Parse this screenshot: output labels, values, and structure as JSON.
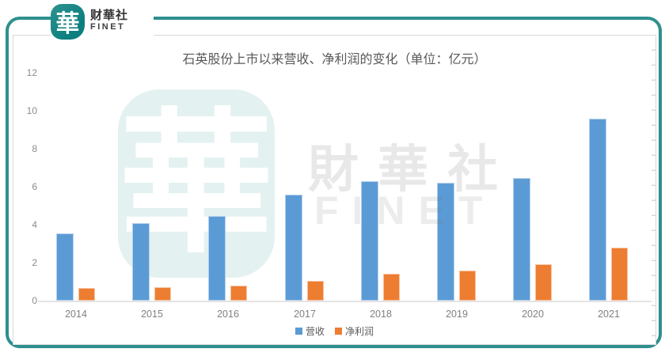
{
  "header": {
    "logo_glyph": "華",
    "brand_cn": "财華社",
    "brand_en": "FINET"
  },
  "watermark": {
    "logo_glyph": "華",
    "text_cn": "財華社",
    "text_en": "FINET"
  },
  "chart_data": {
    "type": "bar",
    "title": "石英股份上市以来营收、净利润的变化（单位：亿元）",
    "categories": [
      "2014",
      "2015",
      "2016",
      "2017",
      "2018",
      "2019",
      "2020",
      "2021"
    ],
    "series": [
      {
        "name": "营收",
        "color": "#5B9BD5",
        "values": [
          3.55,
          4.1,
          4.45,
          5.6,
          6.3,
          6.2,
          6.45,
          9.6
        ]
      },
      {
        "name": "净利润",
        "color": "#ED7D31",
        "values": [
          0.65,
          0.7,
          0.8,
          1.05,
          1.4,
          1.6,
          1.9,
          2.8
        ]
      }
    ],
    "y_ticks": [
      0,
      2,
      4,
      6,
      8,
      10,
      12
    ],
    "ylim": [
      0,
      12
    ],
    "xlabel": "",
    "ylabel": "",
    "grid": false,
    "legend_position": "bottom"
  },
  "colors": {
    "frame_teal": "#2e8f8e",
    "logo_teal": "#0c7f7e",
    "bar_blue": "#5B9BD5",
    "bar_orange": "#ED7D31",
    "axis_text": "#808080",
    "title_text": "#595959",
    "panel_border": "#d9d9d9"
  }
}
